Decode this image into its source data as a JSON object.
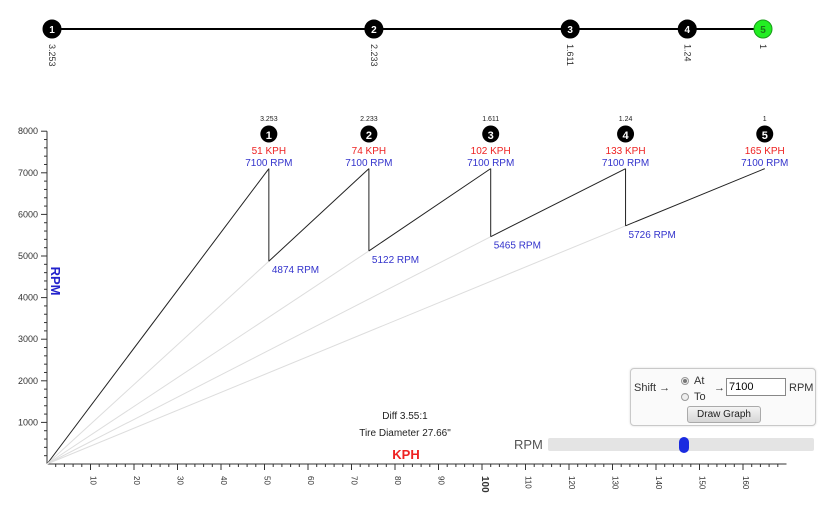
{
  "chart_data": {
    "type": "line",
    "title": "",
    "xlabel": "KPH",
    "ylabel": "RPM",
    "xlim": [
      0,
      165
    ],
    "ylim": [
      0,
      8000
    ],
    "x_ticks": [
      10,
      20,
      30,
      40,
      50,
      60,
      70,
      80,
      90,
      100,
      110,
      120,
      130,
      140,
      150,
      160
    ],
    "y_ticks": [
      1000,
      2000,
      3000,
      4000,
      5000,
      6000,
      7000,
      8000
    ],
    "diff_label": "Diff 3.55:1",
    "tire_label": "Tire Diameter 27.66\"",
    "gears": [
      {
        "num": "1",
        "ratio": "3.253",
        "shift_kph": 51,
        "shift_kph_label": "51 KPH",
        "shift_rpm_label": "7100 RPM",
        "drop_rpm": null,
        "drop_label": ""
      },
      {
        "num": "2",
        "ratio": "2.233",
        "shift_kph": 74,
        "shift_kph_label": "74 KPH",
        "shift_rpm_label": "7100 RPM",
        "drop_rpm": 4874,
        "drop_label": "4874 RPM"
      },
      {
        "num": "3",
        "ratio": "1.611",
        "shift_kph": 102,
        "shift_kph_label": "102 KPH",
        "shift_rpm_label": "7100 RPM",
        "drop_rpm": 5122,
        "drop_label": "5122 RPM"
      },
      {
        "num": "4",
        "ratio": "1.24",
        "shift_kph": 133,
        "shift_kph_label": "133 KPH",
        "shift_rpm_label": "7100 RPM",
        "drop_rpm": 5465,
        "drop_label": "5465 RPM"
      },
      {
        "num": "5",
        "ratio": "1",
        "shift_kph": 165,
        "shift_kph_label": "165 KPH",
        "shift_rpm_label": "7100 RPM",
        "drop_rpm": 5726,
        "drop_label": "5726 RPM"
      }
    ],
    "shift_rpm": 7100
  },
  "ratio_strip": {
    "gears": [
      {
        "num": "1",
        "ratio": "3.253"
      },
      {
        "num": "2",
        "ratio": "2.233"
      },
      {
        "num": "3",
        "ratio": "1.611"
      },
      {
        "num": "4",
        "ratio": "1.24"
      },
      {
        "num": "5",
        "ratio": "1"
      }
    ],
    "highlight_color": "#22ee22"
  },
  "colors": {
    "kph": "#ee2222",
    "rpm": "#3333cc",
    "axis": "#333333",
    "guide": "#dddddd",
    "line": "#222222"
  },
  "controls": {
    "shift_label": "Shift →",
    "at_label": "At",
    "to_label": "To",
    "arrow": "→",
    "rpm_value": "7100",
    "unit_label": "RPM",
    "selected": "At",
    "draw_button": "Draw Graph"
  },
  "rpm_slider": {
    "label": "RPM",
    "value_fraction": 0.51
  }
}
